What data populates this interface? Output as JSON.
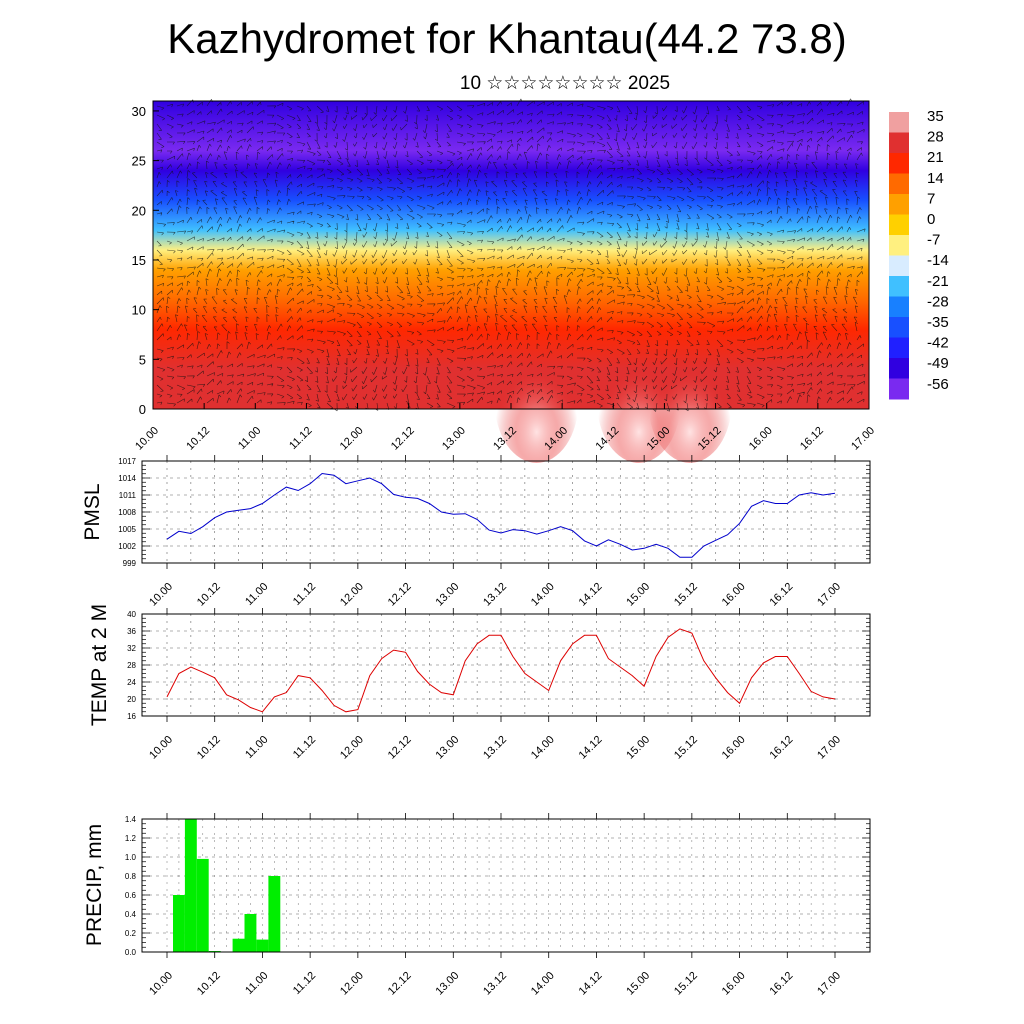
{
  "title": "Kazhydromet for Khantau(44.2 73.8)",
  "subtitle": "10 ☆☆☆☆☆☆☆☆ 2025",
  "time_ticks": [
    "10.00",
    "10.12",
    "11.00",
    "11.12",
    "12.00",
    "12.12",
    "13.00",
    "13.12",
    "14.00",
    "14.12",
    "15.00",
    "15.12",
    "16.00",
    "16.12",
    "17.00"
  ],
  "chart_data": [
    {
      "type": "heatmap",
      "title": "",
      "xlabel": "",
      "ylabel": "",
      "x_ticks": [
        "10.00",
        "10.12",
        "11.00",
        "11.12",
        "12.00",
        "12.12",
        "13.00",
        "13.12",
        "14.00",
        "14.12",
        "15.00",
        "15.12",
        "16.00",
        "16.12",
        "17.00"
      ],
      "y_ticks": [
        0,
        5,
        10,
        15,
        20,
        25,
        30
      ],
      "ylim": [
        0,
        31
      ],
      "overlay": "wind barbs",
      "colorbar": {
        "labels": [
          "35",
          "28",
          "21",
          "14",
          "7",
          "0",
          "-7",
          "-14",
          "-21",
          "-28",
          "-35",
          "-42",
          "-49",
          "-56"
        ],
        "colors": [
          "#f0a0a0",
          "#e03030",
          "#ff2800",
          "#ff6a00",
          "#ffa000",
          "#ffd000",
          "#fff080",
          "#d8ecff",
          "#40c0ff",
          "#1880ff",
          "#1850ff",
          "#2020ff",
          "#3000e0",
          "#7a2af0"
        ]
      },
      "profile_temperature_c": [
        {
          "z": 0,
          "t": 28
        },
        {
          "z": 4,
          "t": 25
        },
        {
          "z": 8,
          "t": 21
        },
        {
          "z": 11,
          "t": 14
        },
        {
          "z": 14,
          "t": 5
        },
        {
          "z": 16,
          "t": -8
        },
        {
          "z": 18,
          "t": -20
        },
        {
          "z": 21,
          "t": -35
        },
        {
          "z": 24,
          "t": -49
        },
        {
          "z": 26,
          "t": -56
        },
        {
          "z": 31,
          "t": -52
        }
      ],
      "warm_spots_x": [
        "13.18",
        "14.18",
        "15.06"
      ]
    },
    {
      "type": "line",
      "title": "",
      "xlabel": "",
      "ylabel": "PMSL",
      "yticks": [
        999,
        1002,
        1005,
        1008,
        1011,
        1014,
        1017
      ],
      "ylim": [
        999,
        1017
      ],
      "series": [
        {
          "color": "#0000cc",
          "values": [
            1003.2,
            1004.6,
            1004.2,
            1005.4,
            1007.0,
            1008.0,
            1008.3,
            1008.6,
            1009.5,
            1011.0,
            1012.4,
            1011.8,
            1013.0,
            1014.8,
            1014.5,
            1013.0,
            1013.5,
            1014.0,
            1013.0,
            1011.1,
            1010.6,
            1010.4,
            1009.5,
            1008.0,
            1007.6,
            1007.7,
            1006.7,
            1004.8,
            1004.3,
            1004.9,
            1004.7,
            1004.1,
            1004.7,
            1005.4,
            1004.7,
            1002.9,
            1002.0,
            1003.1,
            1002.3,
            1001.3,
            1001.6,
            1002.3,
            1001.6,
            1000.0,
            1000.0,
            1002.0,
            1003.0,
            1004.0,
            1006.0,
            1009.0,
            1010.0,
            1009.5,
            1009.5,
            1011.0,
            1011.4,
            1011.0,
            1011.3
          ]
        }
      ]
    },
    {
      "type": "line",
      "title": "",
      "xlabel": "",
      "ylabel": "TEMP at 2 M",
      "yticks": [
        16,
        20,
        24,
        28,
        32,
        36,
        40
      ],
      "ylim": [
        16,
        40
      ],
      "series": [
        {
          "color": "#dd0000",
          "values": [
            20.5,
            26.0,
            27.5,
            26.3,
            25.0,
            21.0,
            19.8,
            18.0,
            17.0,
            20.5,
            21.5,
            25.5,
            25.0,
            22.0,
            18.5,
            17.0,
            17.5,
            25.5,
            29.5,
            31.5,
            31.0,
            26.5,
            23.5,
            21.5,
            21.0,
            29.0,
            33.0,
            35.0,
            35.0,
            30.0,
            26.0,
            24.0,
            22.0,
            29.0,
            33.0,
            35.0,
            35.0,
            29.5,
            27.5,
            25.5,
            23.0,
            30.0,
            34.5,
            36.5,
            35.5,
            29.0,
            25.0,
            21.5,
            19.0,
            25.0,
            28.5,
            30.0,
            30.0,
            26.0,
            21.8,
            20.5,
            20.0
          ]
        }
      ]
    },
    {
      "type": "bar",
      "title": "",
      "xlabel": "",
      "ylabel": "PRECIP, mm",
      "yticks": [
        0.0,
        0.2,
        0.4,
        0.6,
        0.8,
        1.0,
        1.2,
        1.4
      ],
      "ylim": [
        0,
        1.4
      ],
      "bar_color": "#00ee00",
      "bars": [
        {
          "x": "10.03",
          "value": 0.6
        },
        {
          "x": "10.06",
          "value": 1.4
        },
        {
          "x": "10.09",
          "value": 0.98
        },
        {
          "x": "10.12",
          "value": 0.01
        },
        {
          "x": "10.15",
          "value": 0.0
        },
        {
          "x": "10.18",
          "value": 0.14
        },
        {
          "x": "10.21",
          "value": 0.4
        },
        {
          "x": "11.00",
          "value": 0.13
        },
        {
          "x": "11.03",
          "value": 0.8
        }
      ]
    }
  ]
}
